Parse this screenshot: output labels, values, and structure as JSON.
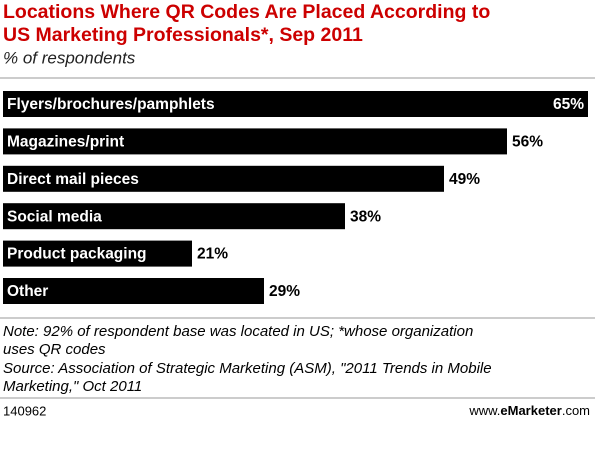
{
  "chart_data": {
    "type": "bar",
    "title": [
      "Locations Where QR Codes Are Placed According to",
      "US Marketing Professionals*, Sep 2011"
    ],
    "subtitle": "% of respondents",
    "categories": [
      "Flyers/brochures/pamphlets",
      "Magazines/print",
      "Direct mail pieces",
      "Social media",
      "Product packaging",
      "Other"
    ],
    "values": [
      65,
      56,
      49,
      38,
      21,
      29
    ],
    "value_labels": [
      "65%",
      "56%",
      "49%",
      "38%",
      "21%",
      "29%"
    ],
    "color": "#000000",
    "notes": [
      "Note: 92% of respondent base was located in US; *whose organization",
      "uses QR codes",
      "Source: Association of Strategic Marketing (ASM), \"2011 Trends in Mobile",
      "Marketing,\" Oct 2011"
    ],
    "chart_id": "140962",
    "footer": [
      "www.",
      "eMarketer",
      ".com"
    ]
  }
}
